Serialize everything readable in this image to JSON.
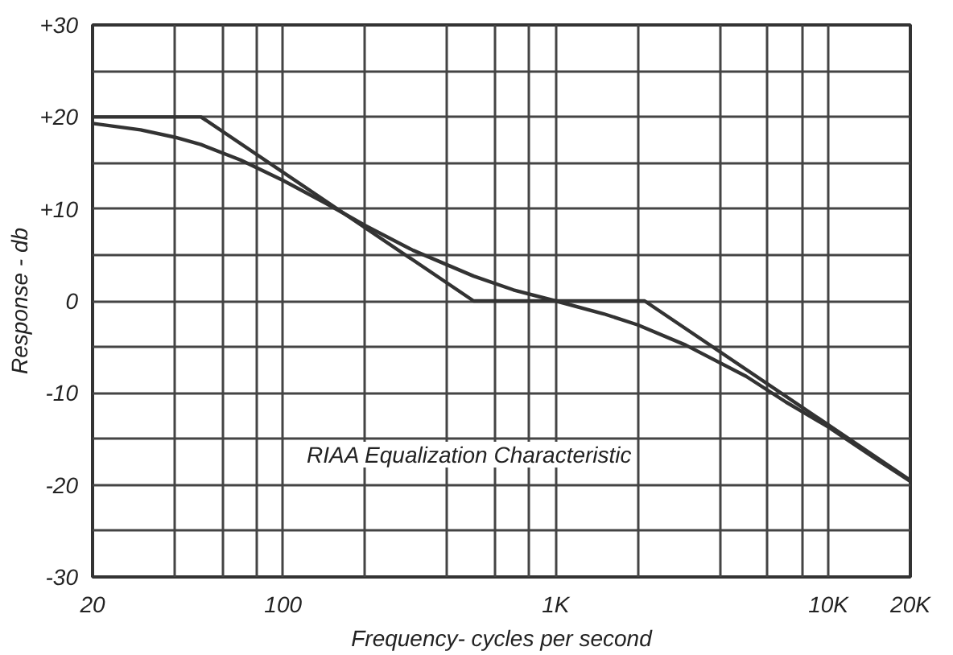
{
  "chart_data": {
    "type": "line",
    "xlabel": "Frequency- cycles per second",
    "ylabel": "Response - db",
    "annotations": [
      "RIAA Equalization Characteristic"
    ],
    "log": "x",
    "grid": true,
    "marker": "none",
    "line_style": "solid",
    "xlim": [
      20,
      20000
    ],
    "ylim": [
      -30,
      30
    ],
    "xticks": [
      20,
      {
        "value": 40,
        "label": null
      },
      {
        "value": 60,
        "label": null
      },
      {
        "value": 80,
        "label": null
      },
      100,
      {
        "value": 200,
        "label": null
      },
      {
        "value": 400,
        "label": null
      },
      {
        "value": 600,
        "label": null
      },
      {
        "value": 800,
        "label": null
      },
      {
        "value": 1000,
        "label": "1K"
      },
      {
        "value": 2000,
        "label": null
      },
      {
        "value": 4000,
        "label": null
      },
      {
        "value": 6000,
        "label": null
      },
      {
        "value": 8000,
        "label": null
      },
      {
        "value": 10000,
        "label": "10K"
      },
      {
        "value": 20000,
        "label": "20K"
      }
    ],
    "yticks": [
      {
        "value": -30,
        "label": "-30"
      },
      {
        "value": -25,
        "label": null
      },
      {
        "value": -20,
        "label": "-20"
      },
      {
        "value": -15,
        "label": null
      },
      {
        "value": -10,
        "label": "-10"
      },
      {
        "value": -5,
        "label": null
      },
      0,
      {
        "value": 5,
        "label": null
      },
      {
        "value": 10,
        "label": "+10"
      },
      {
        "value": 15,
        "label": null
      },
      {
        "value": 20,
        "label": "+20"
      },
      {
        "value": 25,
        "label": null
      },
      {
        "value": 30,
        "label": "+30"
      }
    ],
    "series": [
      {
        "color": "#333333",
        "x": [
          20,
          50,
          500,
          2120,
          20000
        ],
        "values": [
          20,
          20,
          0,
          0,
          -19.5
        ]
      },
      {
        "color": "#333333",
        "x": [
          20,
          30,
          40,
          50,
          70,
          100,
          150,
          200,
          300,
          500,
          700,
          1000,
          1500,
          2000,
          3000,
          5000,
          7000,
          10000,
          15000,
          20000
        ],
        "values": [
          19.3,
          18.6,
          17.8,
          17,
          15.3,
          13.1,
          10.3,
          8.2,
          5.5,
          2.7,
          1.2,
          0,
          -1.4,
          -2.6,
          -4.8,
          -8.2,
          -11,
          -13.7,
          -17.2,
          -19.6
        ]
      }
    ]
  }
}
